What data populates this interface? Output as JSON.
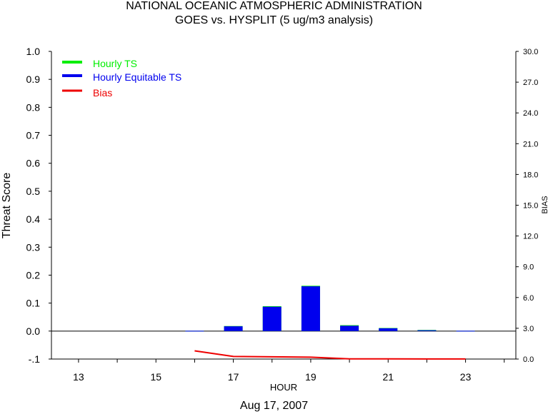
{
  "title_line1": "NATIONAL OCEANIC ATMOSPHERIC ADMINISTRATION",
  "title_line2": "GOES vs. HYSPLIT  (5 ug/m3 analysis)",
  "date_label": "Aug 17, 2007",
  "colors": {
    "hourly_ts": "#00ee00",
    "hourly_ets": "#0000ee",
    "bias": "#ee0000",
    "axis": "#000000"
  },
  "chart_data": {
    "type": "bar",
    "xlabel": "HOUR",
    "ylabel": "Threat Score",
    "y2label": "BIAS",
    "xlim": [
      12.3,
      24.3
    ],
    "ylim": [
      -0.1,
      1.0
    ],
    "y2lim": [
      0.0,
      30.0
    ],
    "x_ticks": [
      13,
      15,
      17,
      19,
      21,
      23
    ],
    "y_ticks": [
      "-.1",
      "0.0",
      "0.1",
      "0.2",
      "0.3",
      "0.4",
      "0.5",
      "0.6",
      "0.7",
      "0.8",
      "0.9",
      "1.0"
    ],
    "y2_ticks": [
      "0.0",
      "3.0",
      "6.0",
      "9.0",
      "12.0",
      "15.0",
      "18.0",
      "21.0",
      "24.0",
      "27.0",
      "30.0"
    ],
    "hours": [
      16,
      17,
      18,
      19,
      20,
      21,
      22,
      23
    ],
    "series": [
      {
        "name": "Hourly TS",
        "values": [
          0.001,
          0.018,
          0.089,
          0.162,
          0.021,
          0.011,
          0.004,
          0.001
        ]
      },
      {
        "name": "Hourly Equitable TS",
        "values": [
          0.001,
          0.017,
          0.087,
          0.16,
          0.019,
          0.01,
          0.003,
          0.001
        ]
      },
      {
        "name": "Bias",
        "axis": "right",
        "values": [
          0.8,
          0.25,
          0.22,
          0.18,
          0.02,
          0.02,
          0.01,
          0.01
        ]
      }
    ],
    "legend_position": "top-left",
    "grid": false
  }
}
